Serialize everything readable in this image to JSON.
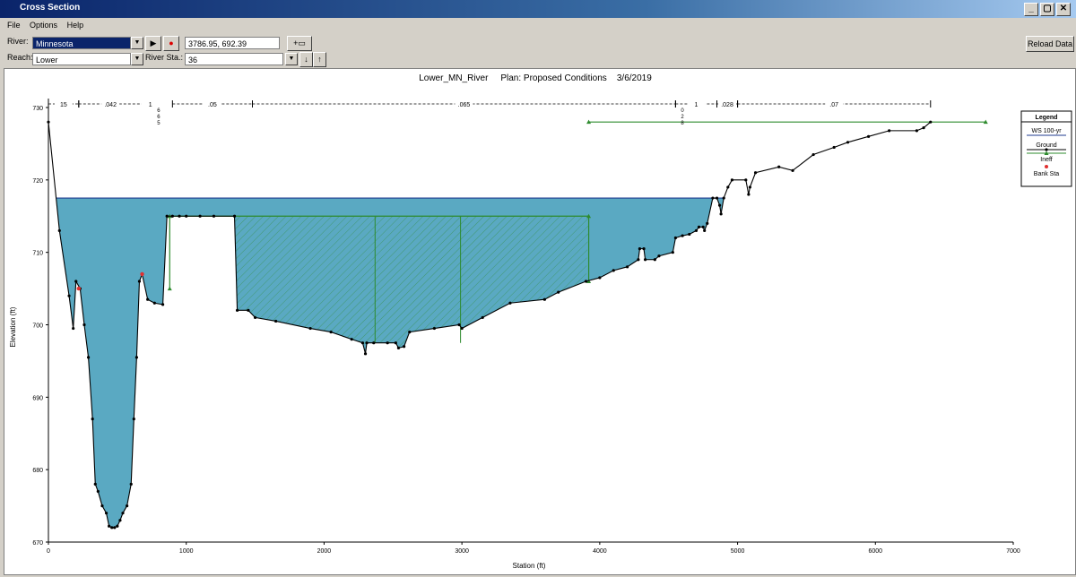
{
  "window": {
    "title": "Cross Section",
    "controls": [
      "_",
      "▢",
      "✕"
    ]
  },
  "menu": [
    "File",
    "Options",
    "Help"
  ],
  "toolbar": {
    "river_label": "River:",
    "river_value": "Minnesota",
    "reach_label": "Reach:",
    "reach_value": "Lower",
    "river_sta_label": "River Sta.:",
    "river_sta_value": "36",
    "coordinates": "3786.95, 692.39",
    "reload_label": "Reload Data"
  },
  "colors": {
    "water_fill": "#5aa9c2",
    "water_line": "#1f3b8f",
    "ground": "#000000",
    "ineffective": "#2e8b2e",
    "bank": "#e03030",
    "bars": "#000000"
  },
  "chart_data": {
    "type": "line",
    "title": "Lower_MN_River     Plan: Proposed Conditions    3/6/2019",
    "xlabel": "Station (ft)",
    "ylabel": "Elevation (ft)",
    "xlim": [
      0,
      7000
    ],
    "ylim": [
      670,
      730
    ],
    "x_ticks": [
      0,
      1000,
      2000,
      3000,
      4000,
      5000,
      6000,
      7000
    ],
    "y_ticks": [
      670,
      680,
      690,
      700,
      710,
      720,
      730
    ],
    "water_surface": 717.5,
    "ground": [
      [
        0,
        728
      ],
      [
        80,
        713
      ],
      [
        150,
        704
      ],
      [
        180,
        699.5
      ],
      [
        200,
        706
      ],
      [
        230,
        705
      ],
      [
        260,
        700
      ],
      [
        290,
        695.5
      ],
      [
        320,
        687
      ],
      [
        340,
        678
      ],
      [
        360,
        677
      ],
      [
        390,
        675
      ],
      [
        420,
        674
      ],
      [
        440,
        672.2
      ],
      [
        460,
        672
      ],
      [
        480,
        672
      ],
      [
        500,
        672.2
      ],
      [
        520,
        673
      ],
      [
        540,
        674
      ],
      [
        570,
        675
      ],
      [
        600,
        678
      ],
      [
        620,
        687
      ],
      [
        640,
        695.5
      ],
      [
        660,
        706
      ],
      [
        680,
        707
      ],
      [
        720,
        703.5
      ],
      [
        770,
        703
      ],
      [
        830,
        702.8
      ],
      [
        860,
        715
      ],
      [
        900,
        715
      ],
      [
        950,
        715
      ],
      [
        1000,
        715
      ],
      [
        1100,
        715
      ],
      [
        1200,
        715
      ],
      [
        1350,
        715
      ],
      [
        1370,
        702
      ],
      [
        1450,
        702
      ],
      [
        1500,
        701
      ],
      [
        1650,
        700.5
      ],
      [
        1900,
        699.5
      ],
      [
        2050,
        699
      ],
      [
        2200,
        698
      ],
      [
        2280,
        697.5
      ],
      [
        2300,
        696
      ],
      [
        2310,
        697.5
      ],
      [
        2360,
        697.5
      ],
      [
        2460,
        697.5
      ],
      [
        2520,
        697.5
      ],
      [
        2540,
        696.8
      ],
      [
        2580,
        697
      ],
      [
        2620,
        699
      ],
      [
        2800,
        699.5
      ],
      [
        2980,
        700
      ],
      [
        3000,
        699.5
      ],
      [
        3150,
        701
      ],
      [
        3350,
        703
      ],
      [
        3600,
        703.5
      ],
      [
        3700,
        704.5
      ],
      [
        3900,
        706
      ],
      [
        4000,
        706.5
      ],
      [
        4100,
        707.5
      ],
      [
        4200,
        708
      ],
      [
        4280,
        709
      ],
      [
        4290,
        710.5
      ],
      [
        4320,
        710.5
      ],
      [
        4330,
        709
      ],
      [
        4400,
        709
      ],
      [
        4430,
        709.5
      ],
      [
        4530,
        710
      ],
      [
        4550,
        712
      ],
      [
        4600,
        712.3
      ],
      [
        4650,
        712.5
      ],
      [
        4700,
        713
      ],
      [
        4720,
        713.5
      ],
      [
        4750,
        713.5
      ],
      [
        4760,
        713
      ],
      [
        4780,
        714
      ],
      [
        4820,
        717.5
      ],
      [
        4850,
        717.5
      ],
      [
        4870,
        716.5
      ],
      [
        4880,
        715.3
      ],
      [
        4900,
        717.5
      ],
      [
        4930,
        719
      ],
      [
        4960,
        720
      ],
      [
        5060,
        720
      ],
      [
        5080,
        718
      ],
      [
        5090,
        719
      ],
      [
        5130,
        721
      ],
      [
        5300,
        721.8
      ],
      [
        5400,
        721.3
      ],
      [
        5550,
        723.5
      ],
      [
        5700,
        724.5
      ],
      [
        5800,
        725.2
      ],
      [
        5950,
        726
      ],
      [
        6100,
        726.8
      ],
      [
        6300,
        726.8
      ],
      [
        6350,
        727.2
      ],
      [
        6400,
        728
      ]
    ],
    "bank_stations": [
      [
        220,
        705
      ],
      [
        680,
        707
      ]
    ],
    "ineffective": [
      [
        [
          880,
          705
        ],
        [
          880,
          715
        ],
        [
          3920,
          715
        ],
        [
          3920,
          706
        ]
      ],
      [
        [
          3920,
          728
        ],
        [
          6800,
          728
        ]
      ]
    ],
    "ineffective_verticals": [
      2370,
      2990
    ],
    "manning_segments": [
      {
        "label": "15",
        "x1": 0,
        "x2": 220
      },
      {
        "label": ".042",
        "x1": 220,
        "x2": 680
      },
      {
        "label": "1",
        "x1": 680,
        "x2": 800
      },
      {
        "label": ".05",
        "x1": 900,
        "x2": 1480
      },
      {
        "label": ".065",
        "x1": 1480,
        "x2": 4550
      },
      {
        "label": "1",
        "x1": 4550,
        "x2": 4850
      },
      {
        "label": ".028",
        "x1": 4850,
        "x2": 5000
      },
      {
        "label": ".07",
        "x1": 5000,
        "x2": 6400
      }
    ],
    "manning_small_stacks": [
      {
        "x": 800,
        "labels": [
          "6",
          "6",
          "5"
        ]
      },
      {
        "x": 4600,
        "labels": [
          "0",
          "2",
          "8"
        ]
      }
    ],
    "legend": [
      {
        "label": "WS 100-yr",
        "kind": "ws"
      },
      {
        "label": "Ground",
        "kind": "ground"
      },
      {
        "label": "Ineff",
        "kind": "ineff"
      },
      {
        "label": "Bank Sta",
        "kind": "bank"
      }
    ],
    "legend_title": "Legend"
  }
}
